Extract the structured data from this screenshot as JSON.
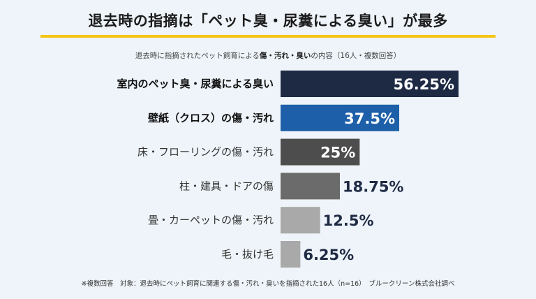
{
  "header": {
    "title": "退去時の指摘は「ペット臭・尿糞による臭い」が最多",
    "subtitle_pre": "退去時に指摘されたペット飼育による",
    "subtitle_bold": "傷・汚れ・臭い",
    "subtitle_post": "の内容（16人・複数回答）"
  },
  "footnote": "※複数回答　対象：退去時にペット飼育に関連する傷・汚れ・臭いを指摘された16人（n=16）　ブルークリーン株式会社調べ",
  "chart_data": {
    "type": "bar",
    "orientation": "horizontal",
    "categories": [
      "室内のペット臭・尿糞による臭い",
      "壁紙（クロス）の傷・汚れ",
      "床・フローリングの傷・汚れ",
      "柱・建具・ドアの傷",
      "畳・カーペットの傷・汚れ",
      "毛・抜け毛"
    ],
    "values": [
      56.25,
      37.5,
      25,
      18.75,
      12.5,
      6.25
    ],
    "value_labels": [
      "56.25%",
      "37.5%",
      "25%",
      "18.75%",
      "12.5%",
      "6.25%"
    ],
    "bar_colors": [
      "#1e2a44",
      "#1d5fa8",
      "#4d4d4d",
      "#6b6b6b",
      "#a9a9a9",
      "#a9a9a9"
    ],
    "bold_categories": [
      true,
      true,
      false,
      false,
      false,
      false
    ],
    "label_color_inside": "#ffffff",
    "label_color_outside": "#1e2a44",
    "xlim": [
      0,
      60
    ],
    "grid": false
  }
}
